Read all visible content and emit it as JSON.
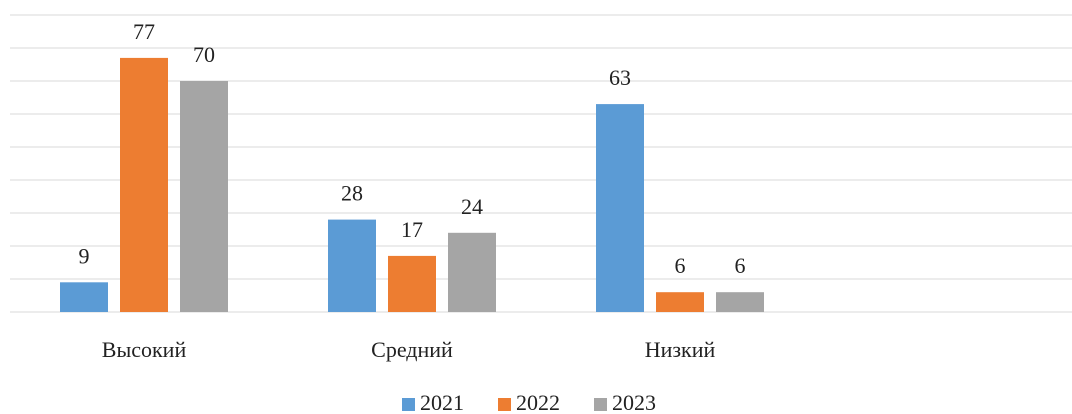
{
  "chart_data": {
    "type": "bar",
    "categories": [
      "Высокий",
      "Средний",
      "Низкий",
      null
    ],
    "series": [
      {
        "name": "2021",
        "color": "#5b9bd5",
        "values": [
          9,
          28,
          63,
          null
        ]
      },
      {
        "name": "2022",
        "color": "#ed7d31",
        "values": [
          77,
          17,
          6,
          null
        ]
      },
      {
        "name": "2023",
        "color": "#a5a5a5",
        "values": [
          70,
          24,
          6,
          null
        ]
      }
    ],
    "ylim": [
      0,
      90
    ],
    "yticks": [
      0,
      10,
      20,
      30,
      40,
      50,
      60,
      70,
      80,
      90
    ],
    "grid": true,
    "legend": "bottom"
  }
}
